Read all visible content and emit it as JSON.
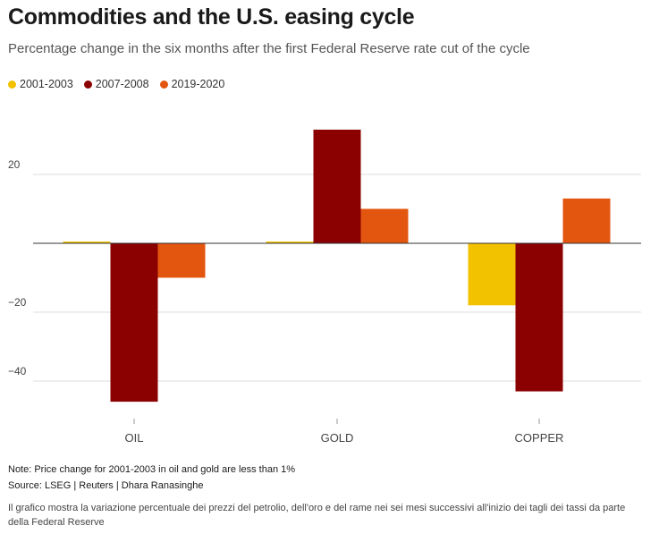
{
  "header": {
    "title": "Commodities and the U.S. easing cycle",
    "subtitle": "Percentage change in the six months after the first Federal Reserve rate cut of the cycle"
  },
  "colors": {
    "2001-2003": "#f2c200",
    "2007-2008": "#8b0000",
    "2019-2020": "#e3560f"
  },
  "chart_data": {
    "type": "bar",
    "categories": [
      "OIL",
      "GOLD",
      "COPPER"
    ],
    "series": [
      {
        "name": "2001-2003",
        "values": [
          0.5,
          0.5,
          -18
        ]
      },
      {
        "name": "2007-2008",
        "values": [
          -46,
          33,
          -43
        ]
      },
      {
        "name": "2019-2020",
        "values": [
          -10,
          10,
          13
        ]
      }
    ],
    "ylim": [
      -47,
      35
    ],
    "yticks": [
      20,
      0,
      -20,
      -40
    ],
    "ytick_labels": [
      "20",
      "",
      "−20",
      "−40"
    ],
    "grid": true,
    "legend": "top-left"
  },
  "footer": {
    "note": "Note: Price change for 2001-2003 in oil and gold are less than 1%",
    "source": "Source: LSEG | Reuters | Dhara Ranasinghe",
    "description": "Il grafico mostra la variazione percentuale dei prezzi del petrolio, dell'oro e del rame nei sei mesi successivi all'inizio dei tagli dei tassi da parte della Federal Reserve"
  }
}
